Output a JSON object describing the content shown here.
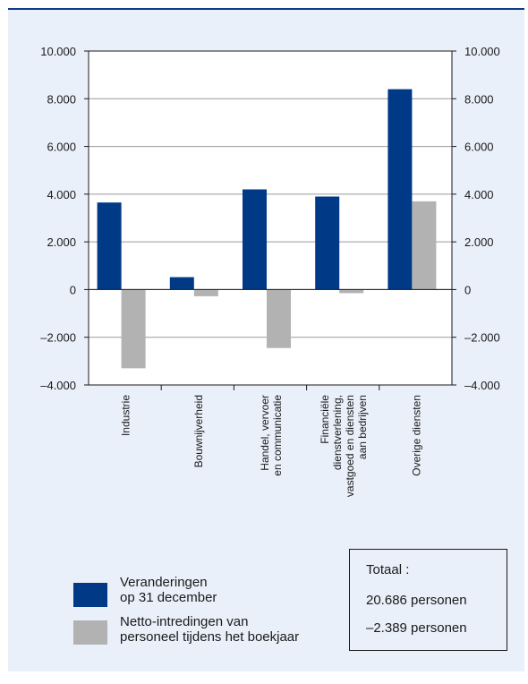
{
  "chart_data": {
    "type": "bar",
    "categories": [
      [
        "Industrie"
      ],
      [
        "Bouwnijverheid"
      ],
      [
        "Handel, vervoer",
        "en communicatie"
      ],
      [
        "Financiële",
        "dienstverlening,",
        "vastgoed en diensten",
        "aan bedrijven"
      ],
      [
        "Overige diensten"
      ]
    ],
    "series": [
      {
        "name": "Veranderingen op 31 december",
        "color": "#003a87",
        "values": [
          3650,
          520,
          4200,
          3900,
          8400
        ]
      },
      {
        "name": "Netto-intredingen van personeel tijdens het boekjaar",
        "color": "#b2b2b2",
        "values": [
          -3300,
          -280,
          -2450,
          -150,
          3700
        ]
      }
    ],
    "ylim": [
      -4000,
      10000
    ],
    "yticks": [
      -4000,
      -2000,
      0,
      2000,
      4000,
      6000,
      8000,
      10000
    ],
    "ytick_labels": [
      "–4.000",
      "–2.000",
      "0",
      "2.000",
      "4.000",
      "6.000",
      "8.000",
      "10.000"
    ],
    "grid": true,
    "legend_position": "bottom-left"
  },
  "legend": [
    {
      "label": "Veranderingen\nop 31 december",
      "color": "#003a87"
    },
    {
      "label": "Netto-intredingen van\npersoneel tijdens het boekjaar",
      "color": "#b2b2b2"
    }
  ],
  "totals": {
    "title": "Totaal :",
    "line1": "20.686 personen",
    "line2": "–2.389 personen"
  }
}
